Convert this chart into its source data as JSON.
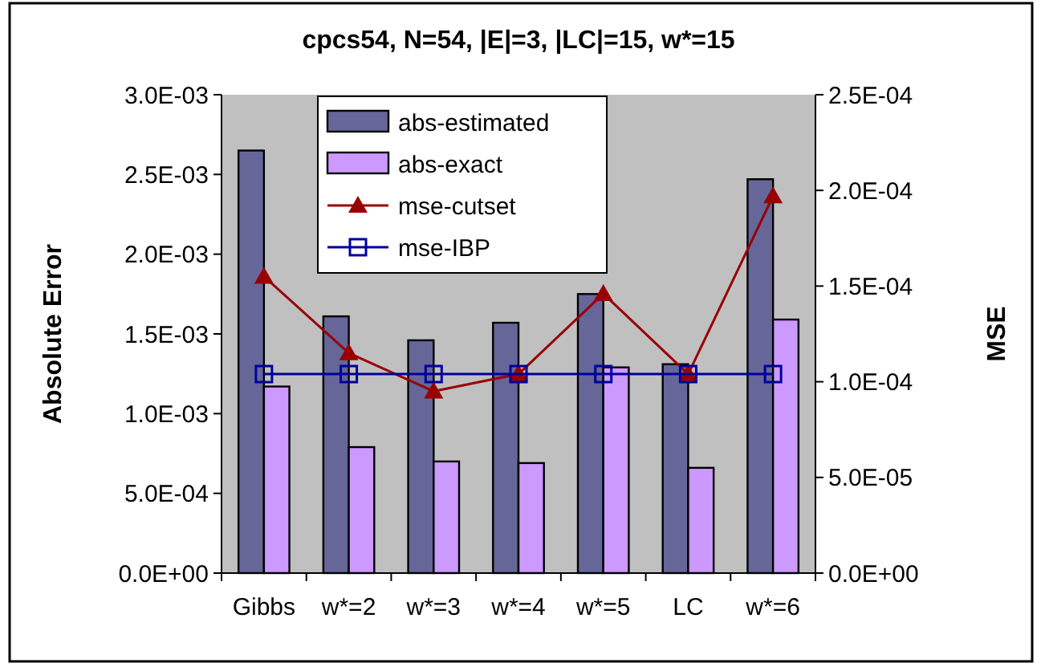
{
  "chart_data": {
    "type": "bar",
    "title": "cpcs54, N=54, |E|=3, |LC|=15, w*=15",
    "ylabel": "Absolute Error",
    "y2label": "MSE",
    "categories": [
      "Gibbs",
      "w*=2",
      "w*=3",
      "w*=4",
      "w*=5",
      "LC",
      "w*=6"
    ],
    "series": [
      {
        "name": "abs-estimated",
        "color": "#666699",
        "values": [
          0.00265,
          0.00161,
          0.00146,
          0.00157,
          0.00175,
          0.00131,
          0.00247
        ]
      },
      {
        "name": "abs-exact",
        "color": "#cc99ff",
        "values": [
          0.00117,
          0.00079,
          0.0007,
          0.00069,
          0.00129,
          0.00066,
          0.00159
        ]
      },
      {
        "name": "mse-cutset",
        "type": "line",
        "axis": "y2",
        "color": "#990000",
        "marker": "triangle",
        "values": [
          0.000155,
          0.000115,
          9.5e-05,
          0.000104,
          0.000146,
          0.000104,
          0.000197
        ]
      },
      {
        "name": "mse-IBP",
        "type": "line",
        "axis": "y2",
        "color": "#000099",
        "marker": "square",
        "values": [
          0.000104,
          0.000104,
          0.000104,
          0.000104,
          0.000104,
          0.000104,
          0.000104
        ]
      }
    ],
    "ylim": [
      0,
      0.003
    ],
    "yticks": [
      {
        "value": 0,
        "label": "0.0E+00"
      },
      {
        "value": 0.0005,
        "label": "5.0E-04"
      },
      {
        "value": 0.001,
        "label": "1.0E-03"
      },
      {
        "value": 0.0015,
        "label": "1.5E-03"
      },
      {
        "value": 0.002,
        "label": "2.0E-03"
      },
      {
        "value": 0.0025,
        "label": "2.5E-03"
      },
      {
        "value": 0.003,
        "label": "3.0E-03"
      }
    ],
    "y2lim": [
      0,
      0.00025
    ],
    "y2ticks": [
      {
        "value": 0,
        "label": "0.0E+00"
      },
      {
        "value": 5e-05,
        "label": "5.0E-05"
      },
      {
        "value": 0.0001,
        "label": "1.0E-04"
      },
      {
        "value": 0.00015,
        "label": "1.5E-04"
      },
      {
        "value": 0.0002,
        "label": "2.0E-04"
      },
      {
        "value": 0.00025,
        "label": "2.5E-04"
      }
    ],
    "grid": false,
    "legend": "top"
  }
}
